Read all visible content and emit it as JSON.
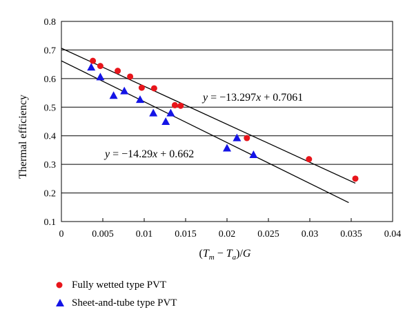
{
  "chart_data": {
    "type": "scatter",
    "xlabel": "(T_m − T_a)/G",
    "xlabel_parts": {
      "open": "(",
      "t1": "T",
      "s1": "m",
      "minus": " − ",
      "t2": "T",
      "s2": "a",
      "close": ")/",
      "g": "G"
    },
    "ylabel": "Thermal efficiency",
    "xlim": [
      0,
      0.04
    ],
    "ylim": [
      0.1,
      0.8
    ],
    "x_ticks": [
      "0",
      "0.005",
      "0.01",
      "0.015",
      "0.02",
      "0.025",
      "0.03",
      "0.035",
      "0.04"
    ],
    "y_ticks": [
      "0.1",
      "0.2",
      "0.3",
      "0.4",
      "0.5",
      "0.6",
      "0.7",
      "0.8"
    ],
    "x_tick_values": [
      0,
      0.005,
      0.01,
      0.015,
      0.02,
      0.025,
      0.03,
      0.035,
      0.04
    ],
    "y_tick_values": [
      0.1,
      0.2,
      0.3,
      0.4,
      0.5,
      0.6,
      0.7,
      0.8
    ],
    "horizontal_grid": true,
    "legend_position": "bottom-left, below plot",
    "series": [
      {
        "name": "Fully wetted type PVT",
        "marker": "circle",
        "color": "#e8151b",
        "points": [
          [
            0.0038,
            0.662
          ],
          [
            0.0047,
            0.644
          ],
          [
            0.0068,
            0.627
          ],
          [
            0.0083,
            0.607
          ],
          [
            0.0097,
            0.568
          ],
          [
            0.0112,
            0.566
          ],
          [
            0.0137,
            0.507
          ],
          [
            0.0144,
            0.505
          ],
          [
            0.0224,
            0.392
          ],
          [
            0.0299,
            0.318
          ],
          [
            0.0355,
            0.25
          ]
        ],
        "fit": {
          "slope": -13.297,
          "intercept": 0.7061,
          "x_range": [
            0,
            0.0355
          ],
          "label": "y = −13.297x + 0.7061"
        }
      },
      {
        "name": "Sheet-and-tube type PVT",
        "marker": "triangle",
        "color": "#1414e6",
        "points": [
          [
            0.0036,
            0.64
          ],
          [
            0.0047,
            0.606
          ],
          [
            0.0063,
            0.541
          ],
          [
            0.0076,
            0.557
          ],
          [
            0.0095,
            0.527
          ],
          [
            0.0111,
            0.48
          ],
          [
            0.0126,
            0.45
          ],
          [
            0.0132,
            0.48
          ],
          [
            0.02,
            0.357
          ],
          [
            0.0212,
            0.393
          ],
          [
            0.0232,
            0.334
          ]
        ],
        "fit": {
          "slope": -14.29,
          "intercept": 0.662,
          "x_range": [
            0,
            0.0347
          ],
          "label": "y = −14.29x + 0.662"
        }
      }
    ],
    "legend": [
      {
        "label": "Fully wetted type PVT",
        "marker": "circle",
        "color": "#e8151b"
      },
      {
        "label": "Sheet-and-tube type PVT",
        "marker": "triangle",
        "color": "#1414e6"
      }
    ]
  }
}
